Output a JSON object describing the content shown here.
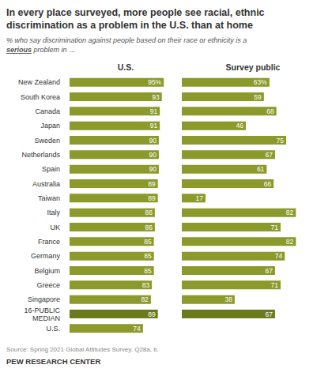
{
  "chart_data": [
    {
      "type": "bar",
      "orientation": "horizontal",
      "title": "In every place surveyed, more people see racial, ethnic\ndiscrimination as a problem in the U.S. than at home",
      "subtitle": "% who say discrimination against people based on their race or ethnicity is a\nserious problem in …",
      "categories": [
        "New Zealand",
        "South Korea",
        "Canada",
        "Japan",
        "Sweden",
        "Netherlands",
        "Spain",
        "Australia",
        "Taiwan",
        "Italy",
        "UK",
        "France",
        "Germany",
        "Belgium",
        "Greece",
        "Singapore",
        "16-PUBLIC\nMEDIAN",
        "U.S."
      ],
      "series": [
        {
          "name": "U.S.",
          "values": [
            95,
            93,
            91,
            91,
            90,
            90,
            90,
            89,
            89,
            86,
            86,
            85,
            85,
            85,
            83,
            82,
            89,
            74
          ],
          "value_labels": [
            "95%",
            "93",
            "91",
            "91",
            "90",
            "90",
            "90",
            "89",
            "89",
            "86",
            "86",
            "85",
            "85",
            "85",
            "83",
            "82",
            "89",
            "74"
          ],
          "colors": [
            "#8B9A2A",
            "#8B9A2A",
            "#8B9A2A",
            "#8B9A2A",
            "#8B9A2A",
            "#8B9A2A",
            "#8B9A2A",
            "#8B9A2A",
            "#8B9A2A",
            "#8B9A2A",
            "#8B9A2A",
            "#8B9A2A",
            "#8B9A2A",
            "#8B9A2A",
            "#8B9A2A",
            "#8B9A2A",
            "#6B7A1A",
            "#8B9A2A"
          ]
        }
      ],
      "xlim": [
        0,
        110
      ],
      "tick_labels": "y",
      "data_labels": true,
      "grid": false,
      "annotations": [
        "Source: Spring 2021 Global Attitudes Survey. Q28a, b.",
        "PEW RESEARCH CENTER"
      ]
    },
    {
      "type": "bar",
      "orientation": "horizontal",
      "categories": [
        "New Zealand",
        "South Korea",
        "Canada",
        "Japan",
        "Sweden",
        "Netherlands",
        "Spain",
        "Australia",
        "Taiwan",
        "Italy",
        "UK",
        "France",
        "Germany",
        "Belgium",
        "Greece",
        "Singapore",
        "16-PUBLIC\nMEDIAN",
        "U.S."
      ],
      "series": [
        {
          "name": "Survey public",
          "values": [
            63,
            59,
            68,
            46,
            75,
            67,
            61,
            66,
            17,
            82,
            71,
            82,
            74,
            67,
            71,
            38,
            67,
            null
          ],
          "value_labels": [
            "63%",
            "59",
            "68",
            "46",
            "75",
            "67",
            "61",
            "66",
            "17",
            "82",
            "71",
            "82",
            "74",
            "67",
            "71",
            "38",
            "67",
            null
          ],
          "colors": [
            "#8B9A2A",
            "#8B9A2A",
            "#8B9A2A",
            "#8B9A2A",
            "#8B9A2A",
            "#8B9A2A",
            "#8B9A2A",
            "#8B9A2A",
            "#8B9A2A",
            "#8B9A2A",
            "#8B9A2A",
            "#8B9A2A",
            "#8B9A2A",
            "#8B9A2A",
            "#8B9A2A",
            "#8B9A2A",
            "#6B7A1A",
            "#8B9A2A"
          ]
        }
      ],
      "xlim": [
        0,
        100
      ],
      "tick_labels": false,
      "data_labels": true,
      "grid": false
    }
  ]
}
